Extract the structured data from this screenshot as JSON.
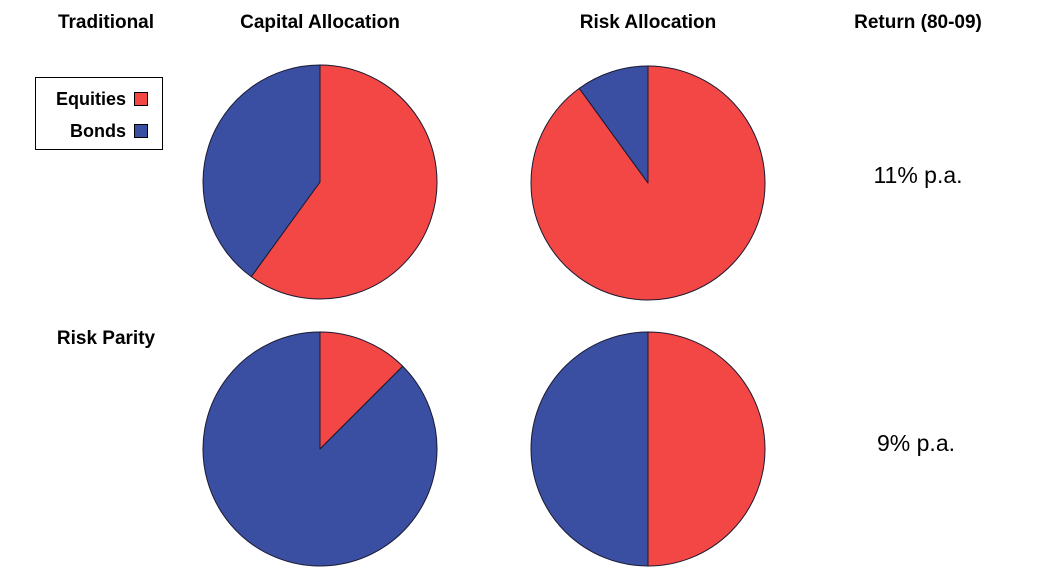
{
  "colors": {
    "equities": "#f24745",
    "bonds": "#3a4fa2"
  },
  "headers": {
    "traditional": "Traditional",
    "capital": "Capital Allocation",
    "risk": "Risk Allocation",
    "return": "Return (80-09)"
  },
  "rows": {
    "risk_parity": "Risk Parity"
  },
  "legend": {
    "equities": "Equities",
    "bonds": "Bonds"
  },
  "returns": {
    "traditional": "11% p.a.",
    "risk_parity": "9% p.a."
  },
  "chart_data": [
    {
      "type": "pie",
      "row": "Traditional",
      "column": "Capital Allocation",
      "slices": [
        {
          "label": "Equities",
          "value": 60,
          "color": "#f24745"
        },
        {
          "label": "Bonds",
          "value": 40,
          "color": "#3a4fa2"
        }
      ]
    },
    {
      "type": "pie",
      "row": "Traditional",
      "column": "Risk Allocation",
      "slices": [
        {
          "label": "Equities",
          "value": 90,
          "color": "#f24745"
        },
        {
          "label": "Bonds",
          "value": 10,
          "color": "#3a4fa2"
        }
      ]
    },
    {
      "type": "pie",
      "row": "Risk Parity",
      "column": "Capital Allocation",
      "slices": [
        {
          "label": "Equities",
          "value": 12.5,
          "color": "#f24745"
        },
        {
          "label": "Bonds",
          "value": 87.5,
          "color": "#3a4fa2"
        }
      ]
    },
    {
      "type": "pie",
      "row": "Risk Parity",
      "column": "Risk Allocation",
      "slices": [
        {
          "label": "Equities",
          "value": 50,
          "color": "#f24745"
        },
        {
          "label": "Bonds",
          "value": 50,
          "color": "#3a4fa2"
        }
      ]
    }
  ]
}
